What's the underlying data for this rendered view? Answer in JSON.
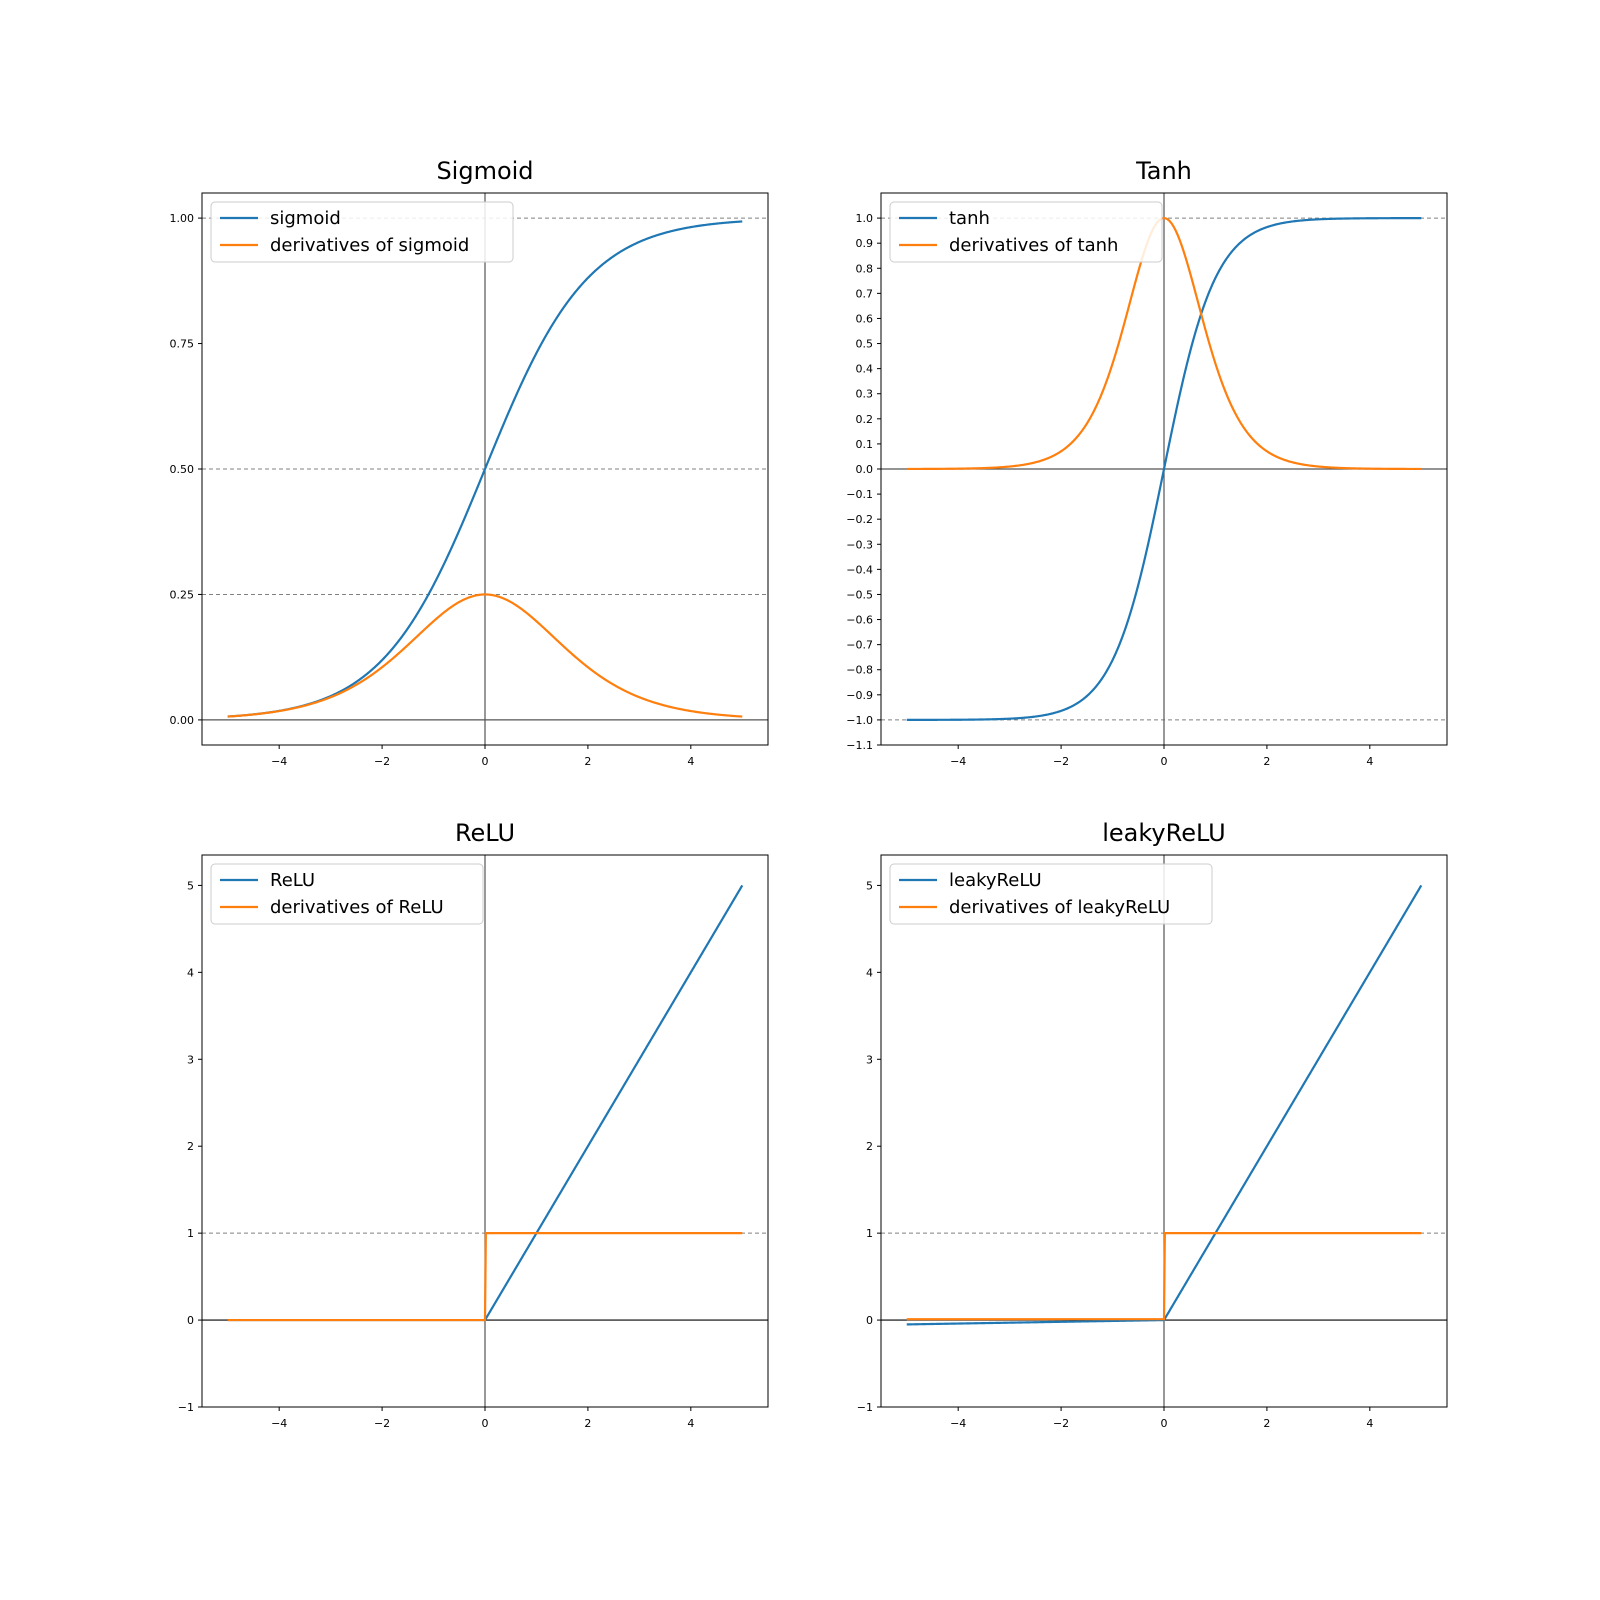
{
  "chart_data": [
    {
      "type": "line",
      "title": "Sigmoid",
      "func": "sigmoid",
      "x_range": [
        -5,
        5
      ],
      "xlim": [
        -5.5,
        5.5
      ],
      "ylim": [
        -0.05,
        1.05
      ],
      "xticks": [
        -4,
        -2,
        0,
        2,
        4
      ],
      "yticks": [
        0,
        0.25,
        0.5,
        0.75,
        1.0
      ],
      "ytick_labels": [
        "0.00",
        "0.25",
        "0.50",
        "0.75",
        "1.00"
      ],
      "xtick_labels": [
        "−4",
        "−2",
        "0",
        "2",
        "4"
      ],
      "reference_lines": [
        0.25,
        0.5,
        1.0
      ],
      "legend_position": "top-left",
      "series": [
        {
          "name": "sigmoid",
          "color": "#1f77b4"
        },
        {
          "name": "derivatives of sigmoid",
          "color": "#ff7f0e"
        }
      ]
    },
    {
      "type": "line",
      "title": "Tanh",
      "func": "tanh",
      "x_range": [
        -5,
        5
      ],
      "xlim": [
        -5.5,
        5.5
      ],
      "ylim": [
        -1.1,
        1.1
      ],
      "xticks": [
        -4,
        -2,
        0,
        2,
        4
      ],
      "yticks": [
        -1.1,
        -1.0,
        -0.9,
        -0.8,
        -0.7,
        -0.6,
        -0.5,
        -0.4,
        -0.3,
        -0.2,
        -0.1,
        0.0,
        0.1,
        0.2,
        0.3,
        0.4,
        0.5,
        0.6,
        0.7,
        0.8,
        0.9,
        1.0
      ],
      "ytick_labels": [
        "−1.1",
        "−1.0",
        "−0.9",
        "−0.8",
        "−0.7",
        "−0.6",
        "−0.5",
        "−0.4",
        "−0.3",
        "−0.2",
        "−0.1",
        "0.0",
        "0.1",
        "0.2",
        "0.3",
        "0.4",
        "0.5",
        "0.6",
        "0.7",
        "0.8",
        "0.9",
        "1.0"
      ],
      "xtick_labels": [
        "−4",
        "−2",
        "0",
        "2",
        "4"
      ],
      "reference_lines": [
        -1.0,
        1.0
      ],
      "legend_position": "top-left",
      "series": [
        {
          "name": "tanh",
          "color": "#1f77b4"
        },
        {
          "name": "derivatives of tanh",
          "color": "#ff7f0e"
        }
      ]
    },
    {
      "type": "line",
      "title": "ReLU",
      "func": "relu",
      "x_range": [
        -5,
        5
      ],
      "xlim": [
        -5.5,
        5.5
      ],
      "ylim": [
        -1,
        5.35
      ],
      "xticks": [
        -4,
        -2,
        0,
        2,
        4
      ],
      "yticks": [
        -1,
        0,
        1,
        2,
        3,
        4,
        5
      ],
      "ytick_labels": [
        "−1",
        "0",
        "1",
        "2",
        "3",
        "4",
        "5"
      ],
      "xtick_labels": [
        "−4",
        "−2",
        "0",
        "2",
        "4"
      ],
      "reference_lines": [
        1
      ],
      "legend_position": "top-left",
      "series": [
        {
          "name": "ReLU",
          "color": "#1f77b4"
        },
        {
          "name": "derivatives of ReLU",
          "color": "#ff7f0e"
        }
      ]
    },
    {
      "type": "line",
      "title": "leakyReLU",
      "func": "leaky",
      "leak_slope": 0.01,
      "x_range": [
        -5,
        5
      ],
      "xlim": [
        -5.5,
        5.5
      ],
      "ylim": [
        -1,
        5.35
      ],
      "xticks": [
        -4,
        -2,
        0,
        2,
        4
      ],
      "yticks": [
        -1,
        0,
        1,
        2,
        3,
        4,
        5
      ],
      "ytick_labels": [
        "−1",
        "0",
        "1",
        "2",
        "3",
        "4",
        "5"
      ],
      "xtick_labels": [
        "−4",
        "−2",
        "0",
        "2",
        "4"
      ],
      "reference_lines": [
        1
      ],
      "legend_position": "top-left",
      "series": [
        {
          "name": "leakyReLU",
          "color": "#1f77b4"
        },
        {
          "name": "derivatives of leakyReLU",
          "color": "#ff7f0e"
        }
      ]
    }
  ]
}
